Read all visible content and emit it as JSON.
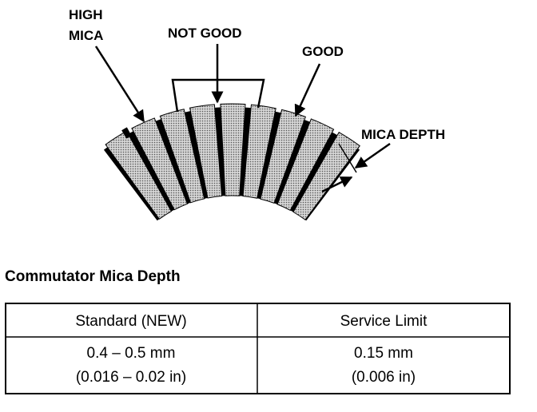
{
  "diagram": {
    "labels": {
      "high_mica": [
        "HIGH",
        "MICA"
      ],
      "not_good": "NOT GOOD",
      "good": "GOOD",
      "mica_depth": "MICA DEPTH"
    }
  },
  "table": {
    "title": "Commutator Mica Depth",
    "headers": [
      "Standard (NEW)",
      "Service Limit"
    ],
    "rows": [
      [
        [
          "0.4 – 0.5 mm",
          "(0.016 – 0.02 in)"
        ],
        [
          "0.15 mm",
          "(0.006 in)"
        ]
      ]
    ]
  }
}
